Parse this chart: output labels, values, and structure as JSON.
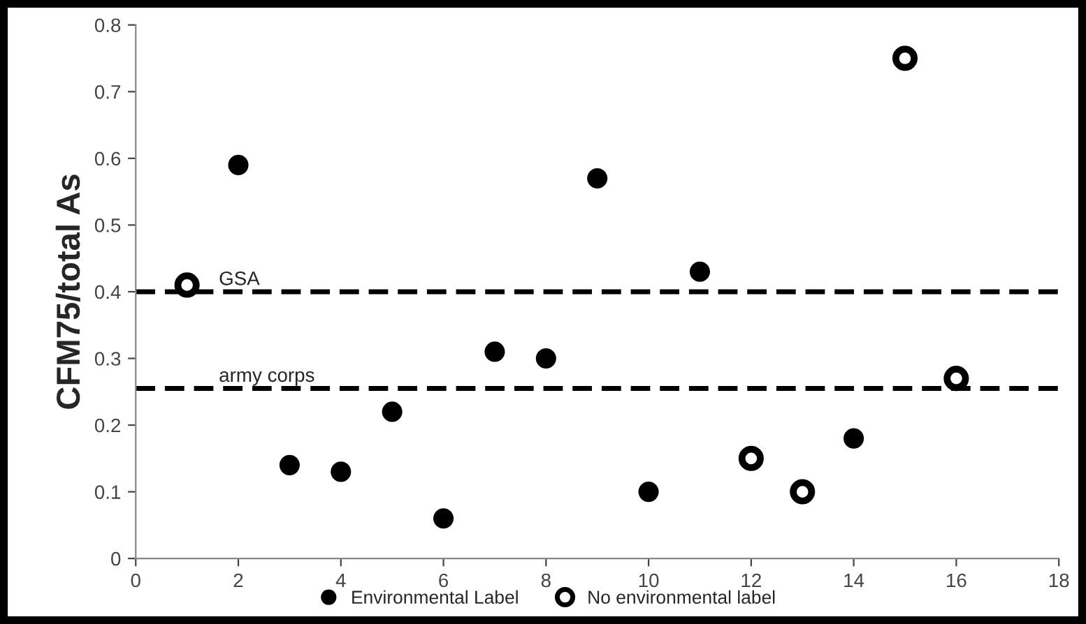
{
  "chart_data": {
    "type": "scatter",
    "ylabel": "CFM75/total As",
    "series": [
      {
        "name": "Environmental Label",
        "color": "#000000",
        "marker": "circle",
        "x": [
          2,
          3,
          4,
          5,
          6,
          7,
          8,
          9,
          10,
          11,
          14
        ],
        "values": [
          0.59,
          0.14,
          0.13,
          0.22,
          0.06,
          0.31,
          0.3,
          0.57,
          0.1,
          0.43,
          0.18
        ]
      },
      {
        "name": "No environmental label",
        "color": "#000000",
        "marker": "circle",
        "x": [
          1,
          12,
          13,
          15,
          16
        ],
        "values": [
          0.41,
          0.15,
          0.1,
          0.75,
          0.27
        ]
      }
    ],
    "xlim": [
      0,
      18
    ],
    "xticks": [
      0,
      2,
      4,
      6,
      8,
      10,
      12,
      14,
      16,
      18
    ],
    "ylim": [
      0,
      0.8
    ],
    "yticks": [
      0,
      0.1,
      0.2,
      0.3,
      0.4,
      0.5,
      0.6,
      0.7,
      0.8
    ],
    "ref_lines": [
      {
        "axis": "y",
        "value": 0.4,
        "label": "GSA",
        "color": "#000000",
        "line_style": "dashed"
      },
      {
        "axis": "y",
        "value": 0.255,
        "label": "army corps",
        "color": "#000000",
        "line_style": "dashed"
      }
    ],
    "grid": false,
    "legend": "bottom"
  }
}
